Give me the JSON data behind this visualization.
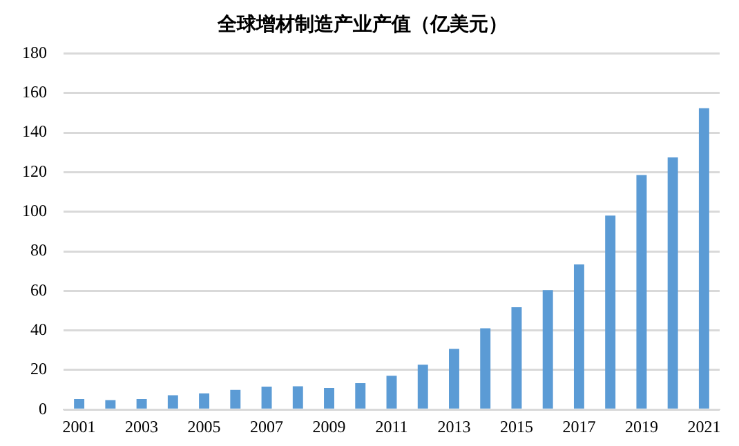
{
  "chart_data": {
    "type": "bar",
    "title": "全球增材制造产业产值（亿美元）",
    "categories": [
      "2001",
      null,
      "2003",
      null,
      "2005",
      null,
      "2007",
      null,
      "2009",
      null,
      "2011",
      null,
      "2013",
      null,
      "2015",
      null,
      "2017",
      null,
      "2019",
      null,
      "2021"
    ],
    "values": [
      5.3,
      4.8,
      5.3,
      7.2,
      8.2,
      9.9,
      11.6,
      11.8,
      10.9,
      13.3,
      17.1,
      22.7,
      30.7,
      41.1,
      51.7,
      60.4,
      73.4,
      98.1,
      118.6,
      127.5,
      152.4
    ],
    "color": "#5b9bd5",
    "ylim": [
      0,
      180
    ],
    "yticks": [
      0,
      20,
      40,
      60,
      80,
      100,
      120,
      140,
      160,
      180
    ],
    "grid": "y"
  }
}
